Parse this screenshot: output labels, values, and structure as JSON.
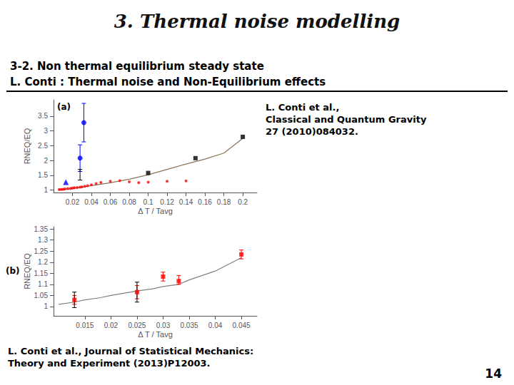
{
  "title": "3. Thermal noise modelling",
  "subtitle": [
    "3-2. Non thermal equilibrium steady state",
    "L. Conti : Thermal noise and Non-Equilibrium effects"
  ],
  "annotations": [
    "L. Conti et al.,\nClassical and Quantum Gravity\n27 (2010)084032.",
    "L. Conti et al., Journal of Statistical Mechanics:\nTheory and Experiment (2013)P12003.",
    "14"
  ],
  "chart_data": [
    {
      "type": "scatter",
      "annotations": [
        "(a)"
      ],
      "xlabel": "Δ T / Tavg",
      "ylabel": "RNEQ/EQ",
      "xlim": [
        0.0,
        0.215
      ],
      "ylim": [
        0.92,
        4.05
      ],
      "xticks": [
        0.02,
        0.04,
        0.06,
        0.08,
        0.1,
        0.12,
        0.14,
        0.16,
        0.18,
        0.2
      ],
      "yticks": [
        1,
        1.5,
        2,
        2.5,
        3,
        3.5
      ],
      "grid": false,
      "series": [
        {
          "type": "line",
          "color": "#8B7355",
          "marker": "none",
          "x": [
            0.005,
            0.02,
            0.04,
            0.06,
            0.08,
            0.1,
            0.12,
            0.14,
            0.16,
            0.18,
            0.2
          ],
          "values": [
            1.0,
            1.05,
            1.15,
            1.25,
            1.37,
            1.52,
            1.7,
            1.88,
            2.05,
            2.25,
            2.75
          ]
        },
        {
          "type": "scatter",
          "color": "red",
          "marker": "point",
          "x": [
            0.006,
            0.008,
            0.01,
            0.012,
            0.015,
            0.018,
            0.02,
            0.022,
            0.025,
            0.028,
            0.03,
            0.033,
            0.036,
            0.04,
            0.045,
            0.05,
            0.06,
            0.07,
            0.08,
            0.09,
            0.1,
            0.12,
            0.14
          ],
          "values": [
            1.02,
            1.02,
            1.03,
            1.04,
            1.05,
            1.06,
            1.07,
            1.08,
            1.09,
            1.1,
            1.11,
            1.13,
            1.15,
            1.18,
            1.22,
            1.26,
            1.3,
            1.32,
            1.28,
            1.25,
            1.27,
            1.3,
            1.31
          ]
        },
        {
          "type": "scatter",
          "color": "blue",
          "marker": "circle",
          "x": [
            0.028,
            0.032
          ],
          "values": [
            2.08,
            3.28
          ],
          "yerr": [
            0.45,
            0.65
          ]
        },
        {
          "type": "scatter",
          "color": "blue",
          "marker": "triangle",
          "x": [
            0.013
          ],
          "values": [
            1.27
          ]
        },
        {
          "type": "scatter",
          "color": "black",
          "marker": "square",
          "x": [
            0.1,
            0.15,
            0.2
          ],
          "values": [
            1.58,
            2.08,
            2.8
          ]
        },
        {
          "type": "scatter",
          "color": "black",
          "marker": "none",
          "x": [
            0.028
          ],
          "values": [
            1.52
          ],
          "yerr": [
            0.18
          ]
        }
      ]
    },
    {
      "type": "scatter",
      "annotations": [
        "(b)"
      ],
      "xlabel": "Δ T / Tavg",
      "ylabel": "RNEQ/EQ",
      "xlim": [
        0.009,
        0.048
      ],
      "ylim": [
        0.958,
        1.36
      ],
      "xticks": [
        0.015,
        0.02,
        0.025,
        0.03,
        0.035,
        0.04,
        0.045
      ],
      "yticks": [
        1,
        1.05,
        1.1,
        1.15,
        1.2,
        1.25,
        1.3,
        1.35
      ],
      "grid": false,
      "series": [
        {
          "type": "line",
          "color": "gray",
          "marker": "none",
          "x": [
            0.01,
            0.013,
            0.015,
            0.018,
            0.02,
            0.025,
            0.028,
            0.03,
            0.033,
            0.035,
            0.04,
            0.045
          ],
          "values": [
            1.01,
            1.02,
            1.03,
            1.04,
            1.05,
            1.07,
            1.08,
            1.09,
            1.1,
            1.12,
            1.16,
            1.22
          ]
        },
        {
          "type": "scatter",
          "color": "red",
          "marker": "square",
          "x": [
            0.013,
            0.025,
            0.03,
            0.033,
            0.045
          ],
          "values": [
            1.03,
            1.065,
            1.135,
            1.115,
            1.235
          ],
          "yerr_minus": [
            0.02,
            0.03,
            0.02,
            0.015,
            0.02
          ],
          "yerr_plus": [
            0.02,
            0.03,
            0.02,
            0.025,
            0.02
          ]
        },
        {
          "type": "scatter",
          "color": "black",
          "marker": "none",
          "x": [
            0.013,
            0.025
          ],
          "values": [
            1.03,
            1.065
          ],
          "yerr": [
            0.035,
            0.045
          ]
        }
      ]
    }
  ]
}
